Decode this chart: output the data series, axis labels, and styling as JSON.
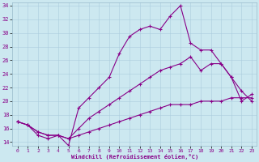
{
  "xlabel": "Windchill (Refroidissement éolien,°C)",
  "background_color": "#cce8f0",
  "line_color": "#880088",
  "xlim": [
    -0.5,
    23.5
  ],
  "ylim": [
    13.5,
    34.5
  ],
  "yticks": [
    14,
    16,
    18,
    20,
    22,
    24,
    26,
    28,
    30,
    32,
    34
  ],
  "xticks": [
    0,
    1,
    2,
    3,
    4,
    5,
    6,
    7,
    8,
    9,
    10,
    11,
    12,
    13,
    14,
    15,
    16,
    17,
    18,
    19,
    20,
    21,
    22,
    23
  ],
  "series1_x": [
    0,
    1,
    2,
    3,
    4,
    5,
    6,
    7,
    8,
    9,
    10,
    11,
    12,
    13,
    14,
    15,
    16,
    17,
    18,
    19,
    20,
    21,
    22,
    23
  ],
  "series1_y": [
    17.0,
    16.5,
    15.0,
    14.5,
    15.0,
    13.5,
    19.0,
    20.5,
    22.0,
    23.5,
    27.0,
    29.5,
    30.5,
    31.0,
    30.5,
    32.5,
    34.0,
    28.5,
    27.5,
    27.5,
    25.5,
    23.5,
    20.0,
    21.0
  ],
  "series2_x": [
    0,
    1,
    2,
    3,
    4,
    5,
    6,
    7,
    8,
    9,
    10,
    11,
    12,
    13,
    14,
    15,
    16,
    17,
    18,
    19,
    20,
    21,
    22,
    23
  ],
  "series2_y": [
    17.0,
    16.5,
    15.5,
    15.0,
    15.0,
    14.5,
    16.0,
    17.5,
    18.5,
    19.5,
    20.5,
    21.5,
    22.5,
    23.5,
    24.5,
    25.0,
    25.5,
    26.5,
    24.5,
    25.5,
    25.5,
    23.5,
    21.5,
    20.0
  ],
  "series3_x": [
    0,
    1,
    2,
    3,
    4,
    5,
    6,
    7,
    8,
    9,
    10,
    11,
    12,
    13,
    14,
    15,
    16,
    17,
    18,
    19,
    20,
    21,
    22,
    23
  ],
  "series3_y": [
    17.0,
    16.5,
    15.5,
    15.0,
    15.0,
    14.5,
    15.0,
    15.5,
    16.0,
    16.5,
    17.0,
    17.5,
    18.0,
    18.5,
    19.0,
    19.5,
    19.5,
    19.5,
    20.0,
    20.0,
    20.0,
    20.5,
    20.5,
    20.5
  ]
}
